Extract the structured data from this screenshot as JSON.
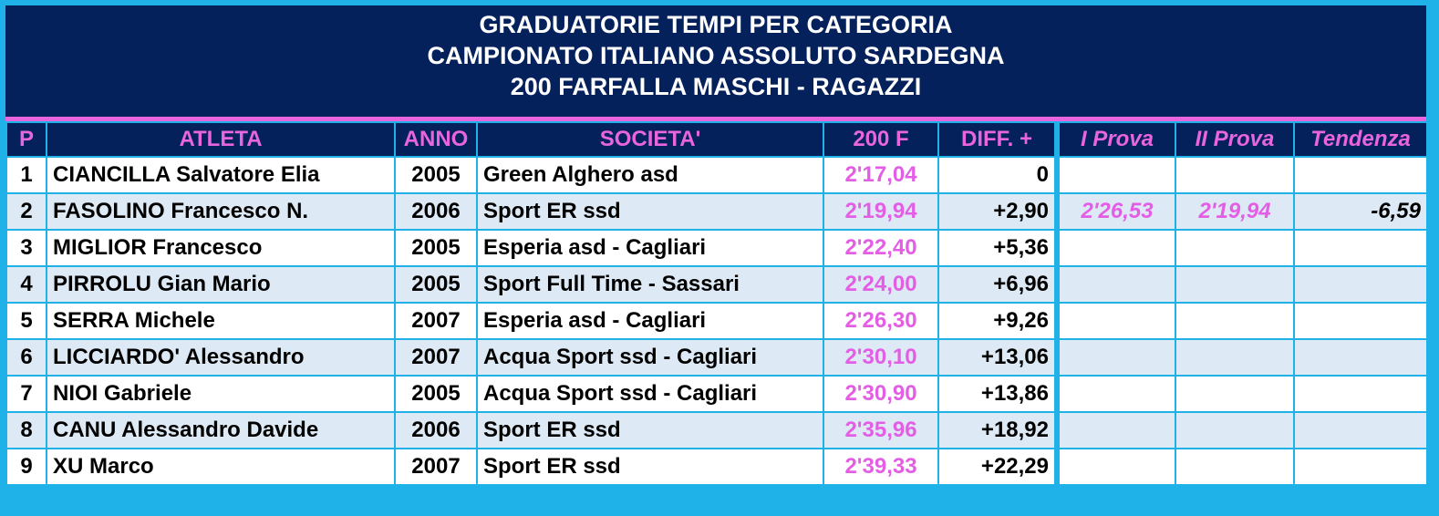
{
  "title": {
    "line1": "GRADUATORIE TEMPI PER CATEGORIA",
    "line2": "CAMPIONATO ITALIANO ASSOLUTO SARDEGNA",
    "line3": "200 FARFALLA MASCHI - RAGAZZI"
  },
  "headers": {
    "p": "P",
    "atleta": "ATLETA",
    "anno": "ANNO",
    "societa": "SOCIETA'",
    "tempo": "200 F",
    "diff": "DIFF. +",
    "prova1": "I Prova",
    "prova2": "II Prova",
    "tendenza": "Tendenza"
  },
  "colors": {
    "navy": "#04215c",
    "pink": "#e965de",
    "cyan": "#1fb2e9",
    "alt_row": "#dde9f5"
  },
  "rows": [
    {
      "p": "1",
      "atleta": "CIANCILLA Salvatore Elia",
      "anno": "2005",
      "societa": "Green Alghero asd",
      "tempo": "2'17,04",
      "diff": "0",
      "prova1": "",
      "prova2": "",
      "tendenza": ""
    },
    {
      "p": "2",
      "atleta": "FASOLINO Francesco N.",
      "anno": "2006",
      "societa": "Sport ER ssd",
      "tempo": "2'19,94",
      "diff": "+2,90",
      "prova1": "2'26,53",
      "prova2": "2'19,94",
      "tendenza": "-6,59"
    },
    {
      "p": "3",
      "atleta": "MIGLIOR Francesco",
      "anno": "2005",
      "societa": "Esperia asd - Cagliari",
      "tempo": "2'22,40",
      "diff": "+5,36",
      "prova1": "",
      "prova2": "",
      "tendenza": ""
    },
    {
      "p": "4",
      "atleta": "PIRROLU Gian Mario",
      "anno": "2005",
      "societa": "Sport Full Time - Sassari",
      "tempo": "2'24,00",
      "diff": "+6,96",
      "prova1": "",
      "prova2": "",
      "tendenza": ""
    },
    {
      "p": "5",
      "atleta": "SERRA Michele",
      "anno": "2007",
      "societa": "Esperia asd - Cagliari",
      "tempo": "2'26,30",
      "diff": "+9,26",
      "prova1": "",
      "prova2": "",
      "tendenza": ""
    },
    {
      "p": "6",
      "atleta": "LICCIARDO' Alessandro",
      "anno": "2007",
      "societa": "Acqua Sport ssd - Cagliari",
      "tempo": "2'30,10",
      "diff": "+13,06",
      "prova1": "",
      "prova2": "",
      "tendenza": ""
    },
    {
      "p": "7",
      "atleta": "NIOI Gabriele",
      "anno": "2005",
      "societa": "Acqua Sport ssd - Cagliari",
      "tempo": "2'30,90",
      "diff": "+13,86",
      "prova1": "",
      "prova2": "",
      "tendenza": ""
    },
    {
      "p": "8",
      "atleta": "CANU Alessandro Davide",
      "anno": "2006",
      "societa": "Sport ER ssd",
      "tempo": "2'35,96",
      "diff": "+18,92",
      "prova1": "",
      "prova2": "",
      "tendenza": ""
    },
    {
      "p": "9",
      "atleta": "XU Marco",
      "anno": "2007",
      "societa": "Sport ER ssd",
      "tempo": "2'39,33",
      "diff": "+22,29",
      "prova1": "",
      "prova2": "",
      "tendenza": ""
    }
  ]
}
